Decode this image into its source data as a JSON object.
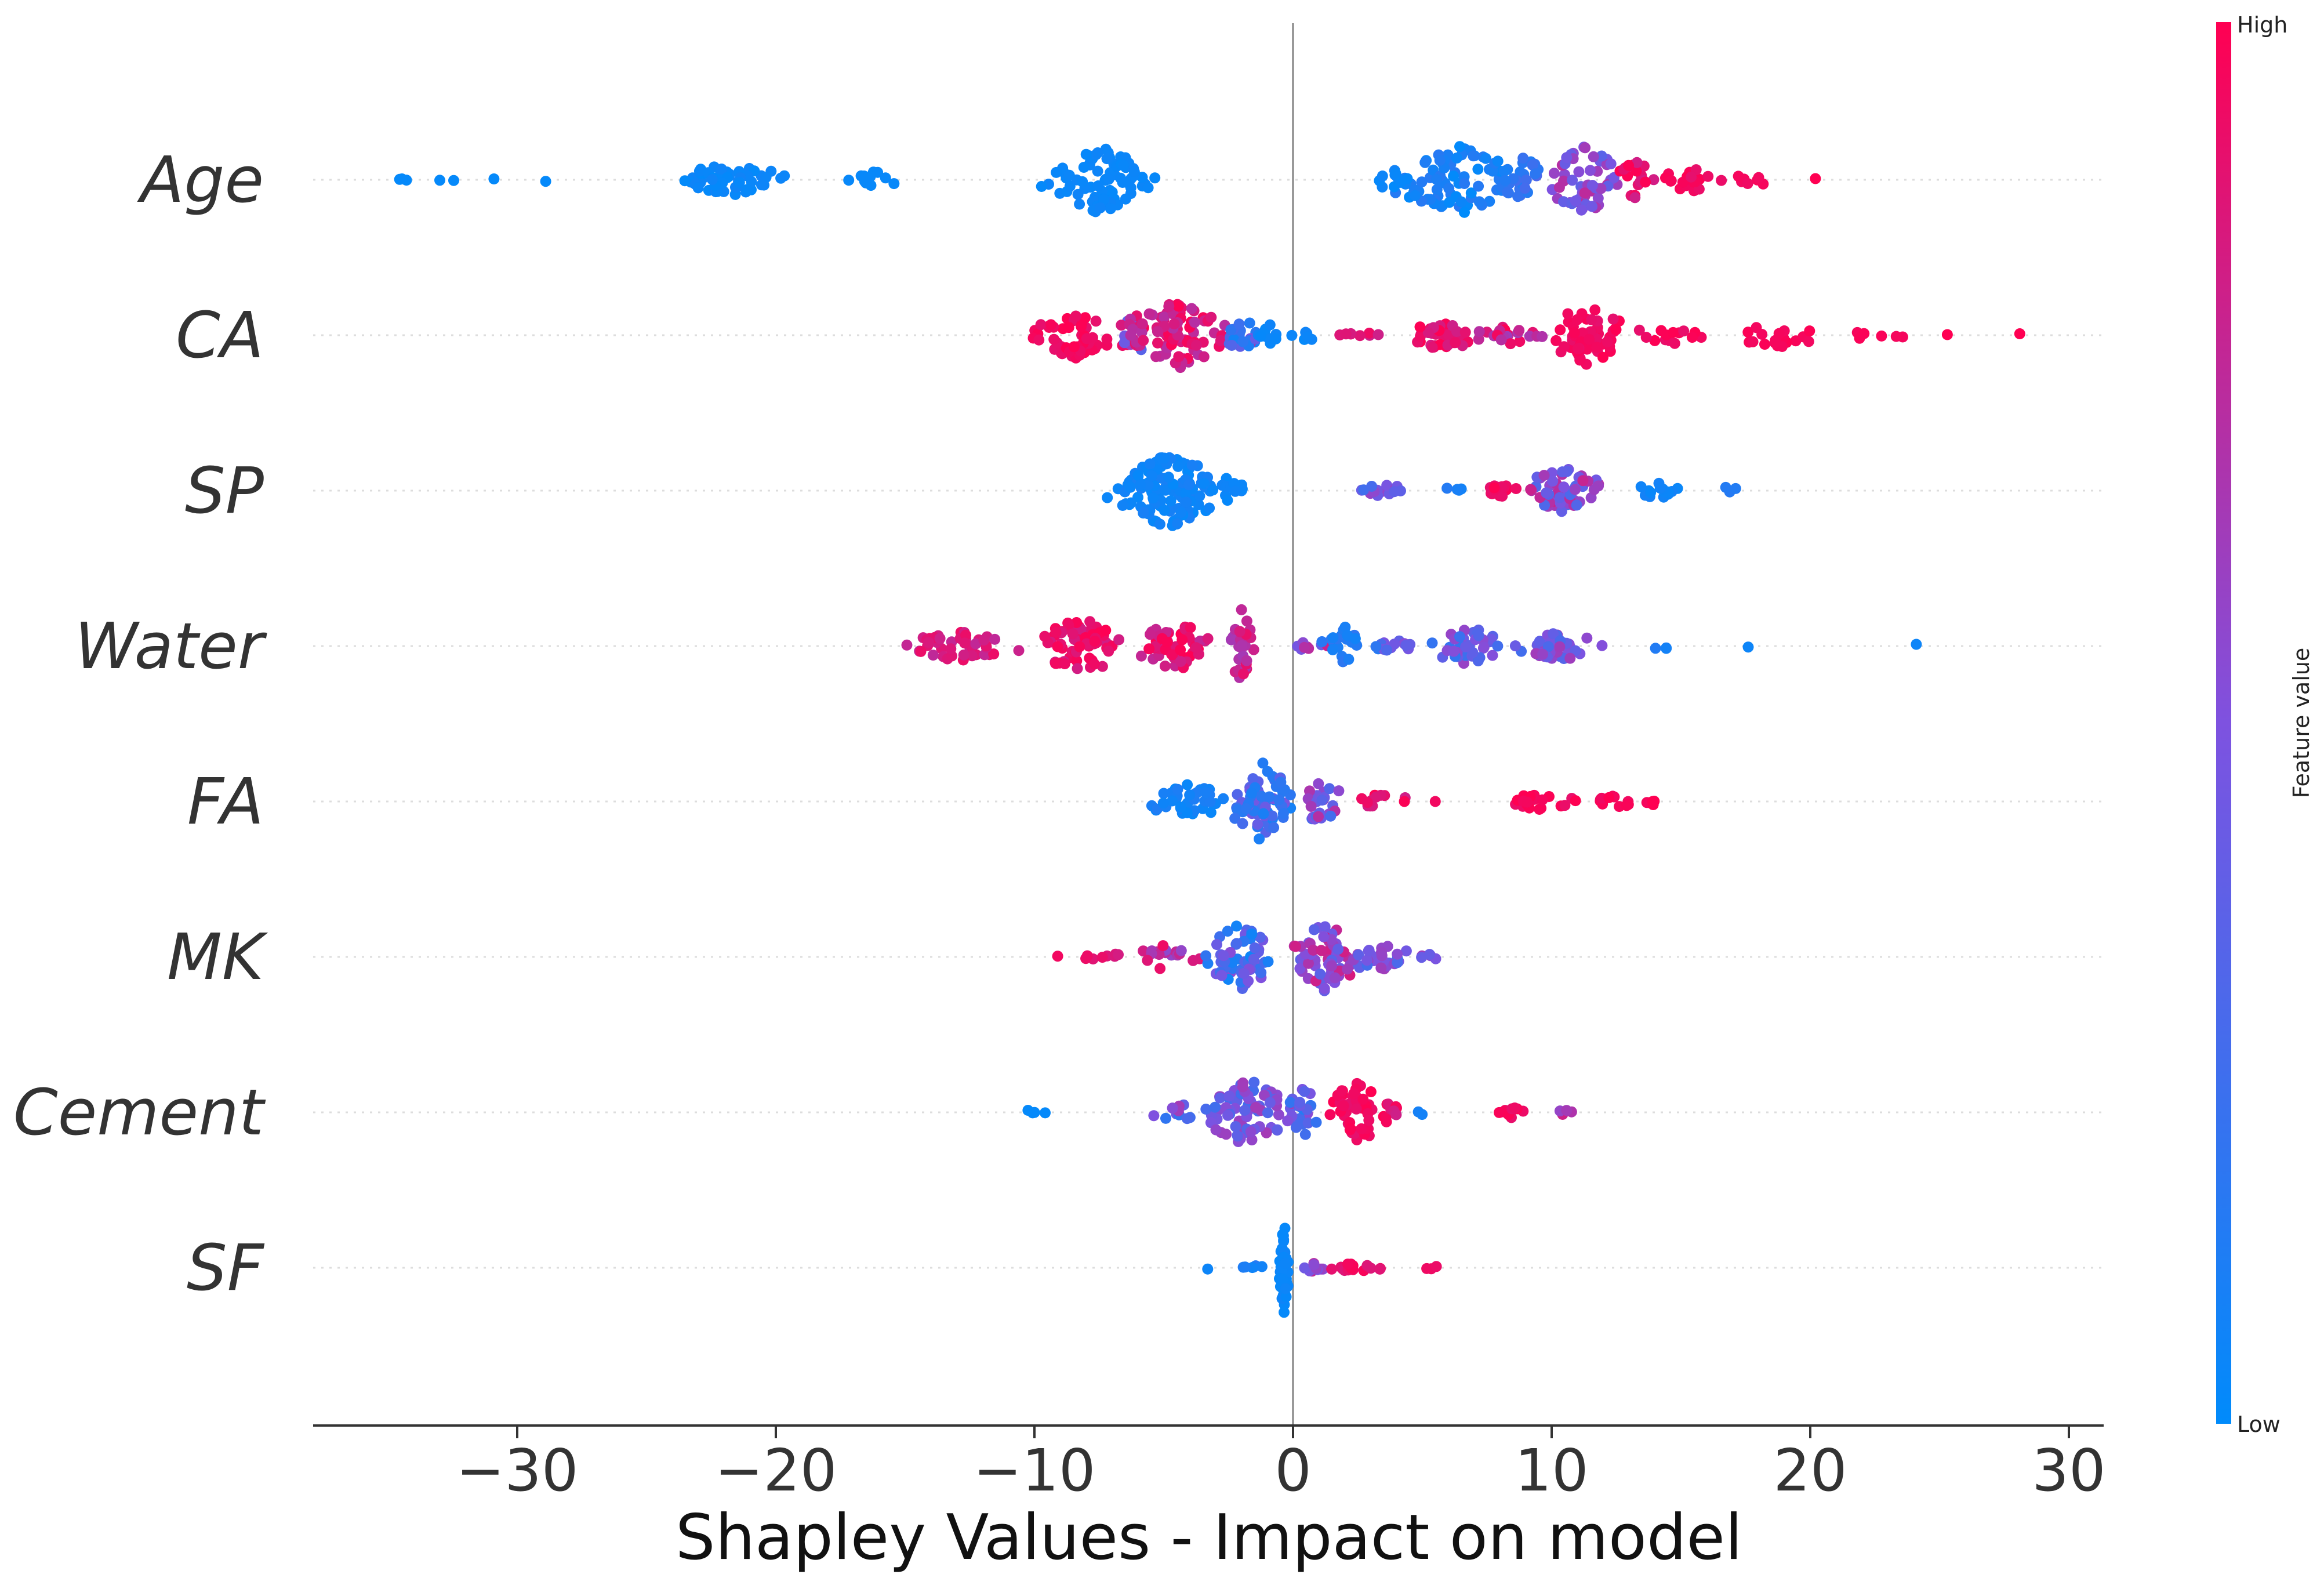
{
  "chart_data": {
    "type": "beeswarm",
    "title": "",
    "xlabel": "Shapley Values - Impact on model",
    "ylabel": "",
    "xlim": [
      -37.5,
      31.5
    ],
    "x_ticks": [
      -30,
      -20,
      -10,
      0,
      10,
      20,
      30
    ],
    "x_tick_labels": [
      "−30",
      "−20",
      "−10",
      "0",
      "10",
      "20",
      "30"
    ],
    "zero_line": 0,
    "colorbar": {
      "label": "Feature value",
      "high": "High",
      "low": "Low",
      "low_color": "#008bfb",
      "mid_color": "#7e52e0",
      "high_color": "#ff0052"
    },
    "features": [
      {
        "name": "Age",
        "clusters": [
          {
            "x": -34.5,
            "spread": 0.6,
            "n": 3,
            "f": 0.02,
            "fs": 0.0,
            "h": 4
          },
          {
            "x": -32.8,
            "spread": 0.3,
            "n": 2,
            "f": 0.02,
            "fs": 0.0,
            "h": 4
          },
          {
            "x": -30.9,
            "spread": 0.2,
            "n": 1,
            "f": 0.02,
            "fs": 0.0,
            "h": 4
          },
          {
            "x": -28.9,
            "spread": 0.1,
            "n": 1,
            "f": 0.02,
            "fs": 0.0,
            "h": 4
          },
          {
            "x": -21.8,
            "spread": 1.8,
            "n": 55,
            "f": 0.04,
            "fs": 0.03,
            "h": 28
          },
          {
            "x": -16.2,
            "spread": 0.8,
            "n": 12,
            "f": 0.03,
            "fs": 0.0,
            "h": 14
          },
          {
            "x": -7.5,
            "spread": 1.6,
            "n": 80,
            "f": 0.04,
            "fs": 0.02,
            "h": 58
          },
          {
            "x": 6.3,
            "spread": 1.8,
            "n": 75,
            "f": 0.08,
            "fs": 0.08,
            "h": 62
          },
          {
            "x": 3.8,
            "spread": 0.6,
            "n": 10,
            "f": 0.05,
            "fs": 0.03,
            "h": 20
          },
          {
            "x": 8.8,
            "spread": 1.0,
            "n": 25,
            "f": 0.2,
            "fs": 0.12,
            "h": 40
          },
          {
            "x": 11.3,
            "spread": 1.2,
            "n": 55,
            "f": 0.55,
            "fs": 0.2,
            "h": 60
          },
          {
            "x": 13.3,
            "spread": 0.7,
            "n": 20,
            "f": 0.9,
            "fs": 0.1,
            "h": 34
          },
          {
            "x": 15.5,
            "spread": 1.0,
            "n": 18,
            "f": 0.95,
            "fs": 0.05,
            "h": 22
          },
          {
            "x": 17.8,
            "spread": 0.6,
            "n": 7,
            "f": 0.97,
            "fs": 0.03,
            "h": 12
          },
          {
            "x": 20.2,
            "spread": 0.1,
            "n": 1,
            "f": 1.0,
            "fs": 0.0,
            "h": 4
          }
        ]
      },
      {
        "name": "CA",
        "clusters": [
          {
            "x": -8.5,
            "spread": 1.3,
            "n": 55,
            "f": 0.95,
            "fs": 0.05,
            "h": 44
          },
          {
            "x": -6.2,
            "spread": 0.5,
            "n": 15,
            "f": 0.6,
            "fs": 0.35,
            "h": 40
          },
          {
            "x": -4.5,
            "spread": 1.5,
            "n": 90,
            "f": 0.85,
            "fs": 0.15,
            "h": 60
          },
          {
            "x": -2.0,
            "spread": 0.6,
            "n": 20,
            "f": 0.4,
            "fs": 0.35,
            "h": 30
          },
          {
            "x": -0.9,
            "spread": 0.4,
            "n": 8,
            "f": 0.05,
            "fs": 0.03,
            "h": 20
          },
          {
            "x": 0.6,
            "spread": 0.5,
            "n": 6,
            "f": 0.05,
            "fs": 0.03,
            "h": 12
          },
          {
            "x": 2.6,
            "spread": 0.9,
            "n": 8,
            "f": 0.9,
            "fs": 0.1,
            "h": 6
          },
          {
            "x": 5.8,
            "spread": 1.3,
            "n": 35,
            "f": 0.9,
            "fs": 0.1,
            "h": 26
          },
          {
            "x": 8.5,
            "spread": 1.0,
            "n": 20,
            "f": 0.8,
            "fs": 0.2,
            "h": 18
          },
          {
            "x": 11.3,
            "spread": 1.3,
            "n": 60,
            "f": 0.95,
            "fs": 0.05,
            "h": 52
          },
          {
            "x": 14.5,
            "spread": 1.4,
            "n": 14,
            "f": 0.95,
            "fs": 0.05,
            "h": 16
          },
          {
            "x": 18.7,
            "spread": 1.5,
            "n": 18,
            "f": 0.97,
            "fs": 0.03,
            "h": 22
          },
          {
            "x": 22.5,
            "spread": 1.0,
            "n": 6,
            "f": 0.98,
            "fs": 0.02,
            "h": 8
          },
          {
            "x": 25.3,
            "spread": 0.2,
            "n": 1,
            "f": 1.0,
            "fs": 0.0,
            "h": 4
          },
          {
            "x": 28.1,
            "spread": 0.1,
            "n": 1,
            "f": 1.0,
            "fs": 0.0,
            "h": 4
          }
        ]
      },
      {
        "name": "SP",
        "clusters": [
          {
            "x": -4.8,
            "spread": 1.6,
            "n": 130,
            "f": 0.06,
            "fs": 0.04,
            "h": 66
          },
          {
            "x": -2.5,
            "spread": 0.6,
            "n": 12,
            "f": 0.05,
            "fs": 0.03,
            "h": 22
          },
          {
            "x": 3.5,
            "spread": 1.1,
            "n": 14,
            "f": 0.45,
            "fs": 0.2,
            "h": 10
          },
          {
            "x": 6.0,
            "spread": 0.5,
            "n": 4,
            "f": 0.1,
            "fs": 0.05,
            "h": 6
          },
          {
            "x": 7.9,
            "spread": 0.6,
            "n": 18,
            "f": 0.95,
            "fs": 0.05,
            "h": 12
          },
          {
            "x": 10.5,
            "spread": 1.3,
            "n": 55,
            "f": 0.55,
            "fs": 0.25,
            "h": 40
          },
          {
            "x": 14.0,
            "spread": 1.0,
            "n": 15,
            "f": 0.06,
            "fs": 0.03,
            "h": 14
          },
          {
            "x": 16.9,
            "spread": 0.3,
            "n": 3,
            "f": 0.1,
            "fs": 0.05,
            "h": 8
          }
        ]
      },
      {
        "name": "Water",
        "clusters": [
          {
            "x": -13.0,
            "spread": 1.6,
            "n": 45,
            "f": 0.85,
            "fs": 0.1,
            "h": 26
          },
          {
            "x": -8.2,
            "spread": 1.6,
            "n": 65,
            "f": 0.9,
            "fs": 0.1,
            "h": 48
          },
          {
            "x": -4.5,
            "spread": 1.3,
            "n": 55,
            "f": 0.88,
            "fs": 0.12,
            "h": 44
          },
          {
            "x": -2.0,
            "spread": 0.4,
            "n": 30,
            "f": 0.8,
            "fs": 0.15,
            "h": 64
          },
          {
            "x": 0.5,
            "spread": 0.7,
            "n": 8,
            "f": 0.6,
            "fs": 0.2,
            "h": 10
          },
          {
            "x": 2.0,
            "spread": 0.6,
            "n": 20,
            "f": 0.12,
            "fs": 0.08,
            "h": 36
          },
          {
            "x": 4.0,
            "spread": 0.8,
            "n": 15,
            "f": 0.35,
            "fs": 0.2,
            "h": 10
          },
          {
            "x": 6.8,
            "spread": 1.4,
            "n": 40,
            "f": 0.4,
            "fs": 0.2,
            "h": 32
          },
          {
            "x": 10.5,
            "spread": 1.3,
            "n": 40,
            "f": 0.45,
            "fs": 0.2,
            "h": 28
          },
          {
            "x": 14.3,
            "spread": 0.6,
            "n": 3,
            "f": 0.1,
            "fs": 0.05,
            "h": 6
          },
          {
            "x": 17.6,
            "spread": 0.1,
            "n": 1,
            "f": 0.05,
            "fs": 0.0,
            "h": 4
          },
          {
            "x": 24.1,
            "spread": 0.1,
            "n": 1,
            "f": 0.05,
            "fs": 0.0,
            "h": 4
          }
        ]
      },
      {
        "name": "FA",
        "clusters": [
          {
            "x": -4.0,
            "spread": 1.3,
            "n": 40,
            "f": 0.08,
            "fs": 0.05,
            "h": 30
          },
          {
            "x": -1.2,
            "spread": 0.9,
            "n": 70,
            "f": 0.28,
            "fs": 0.2,
            "h": 72
          },
          {
            "x": 1.0,
            "spread": 0.8,
            "n": 25,
            "f": 0.5,
            "fs": 0.25,
            "h": 36
          },
          {
            "x": 3.5,
            "spread": 0.8,
            "n": 12,
            "f": 0.9,
            "fs": 0.1,
            "h": 14
          },
          {
            "x": 5.5,
            "spread": 0.1,
            "n": 1,
            "f": 0.95,
            "fs": 0.0,
            "h": 4
          },
          {
            "x": 9.5,
            "spread": 1.0,
            "n": 18,
            "f": 0.95,
            "fs": 0.05,
            "h": 14
          },
          {
            "x": 12.5,
            "spread": 1.1,
            "n": 14,
            "f": 0.97,
            "fs": 0.03,
            "h": 10
          },
          {
            "x": 13.9,
            "spread": 0.1,
            "n": 3,
            "f": 1.0,
            "fs": 0.0,
            "h": 12
          }
        ]
      },
      {
        "name": "MK",
        "clusters": [
          {
            "x": -9.1,
            "spread": 0.1,
            "n": 1,
            "f": 0.95,
            "fs": 0.0,
            "h": 4
          },
          {
            "x": -7.4,
            "spread": 0.8,
            "n": 8,
            "f": 0.9,
            "fs": 0.1,
            "h": 8
          },
          {
            "x": -5.0,
            "spread": 1.0,
            "n": 18,
            "f": 0.75,
            "fs": 0.2,
            "h": 22
          },
          {
            "x": -2.0,
            "spread": 1.1,
            "n": 60,
            "f": 0.3,
            "fs": 0.25,
            "h": 60
          },
          {
            "x": 1.3,
            "spread": 1.0,
            "n": 70,
            "f": 0.6,
            "fs": 0.25,
            "h": 62
          },
          {
            "x": 3.5,
            "spread": 0.8,
            "n": 25,
            "f": 0.45,
            "fs": 0.2,
            "h": 24
          },
          {
            "x": 5.5,
            "spread": 0.5,
            "n": 5,
            "f": 0.5,
            "fs": 0.2,
            "h": 6
          }
        ]
      },
      {
        "name": "Cement",
        "clusters": [
          {
            "x": -10.2,
            "spread": 0.5,
            "n": 4,
            "f": 0.02,
            "fs": 0.0,
            "h": 4
          },
          {
            "x": -4.5,
            "spread": 0.8,
            "n": 10,
            "f": 0.4,
            "fs": 0.25,
            "h": 16
          },
          {
            "x": -1.8,
            "spread": 1.2,
            "n": 80,
            "f": 0.45,
            "fs": 0.2,
            "h": 62
          },
          {
            "x": 0.4,
            "spread": 0.6,
            "n": 25,
            "f": 0.35,
            "fs": 0.2,
            "h": 44
          },
          {
            "x": 2.4,
            "spread": 0.7,
            "n": 45,
            "f": 0.95,
            "fs": 0.05,
            "h": 68
          },
          {
            "x": 3.8,
            "spread": 0.5,
            "n": 12,
            "f": 0.9,
            "fs": 0.1,
            "h": 22
          },
          {
            "x": 5.0,
            "spread": 0.2,
            "n": 2,
            "f": 0.1,
            "fs": 0.05,
            "h": 4
          },
          {
            "x": 8.5,
            "spread": 0.6,
            "n": 10,
            "f": 0.95,
            "fs": 0.05,
            "h": 10
          },
          {
            "x": 10.3,
            "spread": 0.5,
            "n": 4,
            "f": 0.7,
            "fs": 0.2,
            "h": 6
          }
        ]
      },
      {
        "name": "SF",
        "clusters": [
          {
            "x": -3.3,
            "spread": 0.2,
            "n": 1,
            "f": 0.05,
            "fs": 0.0,
            "h": 4
          },
          {
            "x": -1.5,
            "spread": 0.6,
            "n": 6,
            "f": 0.1,
            "fs": 0.05,
            "h": 6
          },
          {
            "x": -0.35,
            "spread": 0.15,
            "n": 45,
            "f": 0.04,
            "fs": 0.02,
            "h": 80
          },
          {
            "x": 0.8,
            "spread": 0.5,
            "n": 10,
            "f": 0.5,
            "fs": 0.3,
            "h": 10
          },
          {
            "x": 2.5,
            "spread": 1.0,
            "n": 16,
            "f": 0.92,
            "fs": 0.06,
            "h": 8
          },
          {
            "x": 5.3,
            "spread": 0.6,
            "n": 3,
            "f": 0.95,
            "fs": 0.03,
            "h": 4
          }
        ]
      }
    ]
  }
}
